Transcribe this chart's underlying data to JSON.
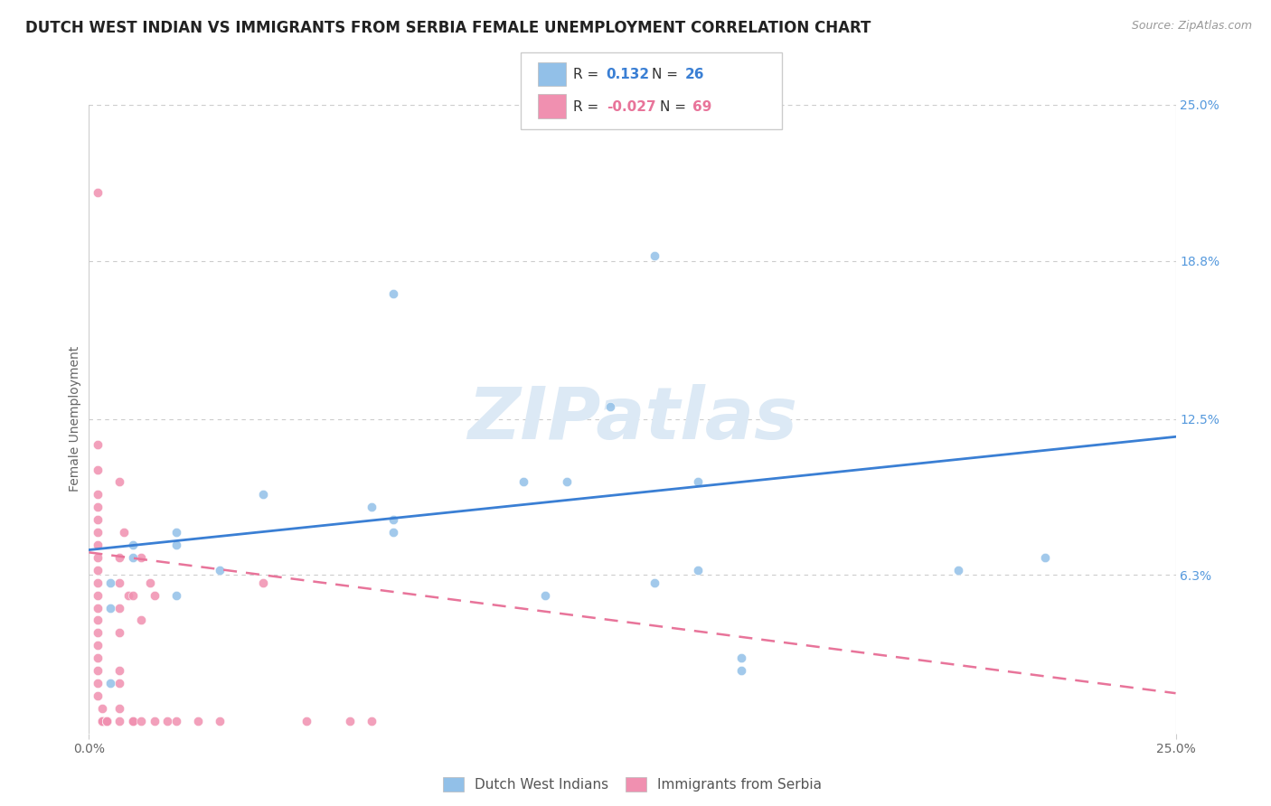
{
  "title": "DUTCH WEST INDIAN VS IMMIGRANTS FROM SERBIA FEMALE UNEMPLOYMENT CORRELATION CHART",
  "source": "Source: ZipAtlas.com",
  "ylabel": "Female Unemployment",
  "xlim": [
    0.0,
    0.25
  ],
  "ylim": [
    0.0,
    0.25
  ],
  "ytick_labels_right": [
    "25.0%",
    "18.8%",
    "12.5%",
    "6.3%"
  ],
  "ytick_values_right": [
    0.25,
    0.188,
    0.125,
    0.063
  ],
  "background_color": "#ffffff",
  "watermark_text": "ZIPatlas",
  "watermark_color": "#dce9f5",
  "blue_color": "#92c0e8",
  "pink_color": "#f090b0",
  "blue_line_color": "#3a7fd4",
  "pink_line_color": "#e8749a",
  "series1_label": "Dutch West Indians",
  "series2_label": "Immigrants from Serbia",
  "series1_R": 0.132,
  "series1_N": 26,
  "series2_R": -0.027,
  "series2_N": 69,
  "dutch_x": [
    0.005,
    0.005,
    0.005,
    0.01,
    0.01,
    0.02,
    0.02,
    0.02,
    0.03,
    0.04,
    0.065,
    0.07,
    0.07,
    0.07,
    0.1,
    0.105,
    0.11,
    0.12,
    0.13,
    0.13,
    0.14,
    0.14,
    0.15,
    0.2,
    0.22,
    0.15
  ],
  "dutch_y": [
    0.06,
    0.05,
    0.02,
    0.075,
    0.07,
    0.08,
    0.075,
    0.055,
    0.065,
    0.095,
    0.09,
    0.175,
    0.085,
    0.08,
    0.1,
    0.055,
    0.1,
    0.13,
    0.19,
    0.06,
    0.065,
    0.1,
    0.025,
    0.065,
    0.07,
    0.03
  ],
  "serbia_x": [
    0.002,
    0.002,
    0.002,
    0.002,
    0.002,
    0.002,
    0.002,
    0.002,
    0.002,
    0.002,
    0.002,
    0.002,
    0.002,
    0.002,
    0.002,
    0.002,
    0.002,
    0.002,
    0.002,
    0.002,
    0.003,
    0.003,
    0.003,
    0.003,
    0.003,
    0.003,
    0.003,
    0.003,
    0.003,
    0.003,
    0.003,
    0.003,
    0.003,
    0.003,
    0.003,
    0.004,
    0.004,
    0.004,
    0.004,
    0.004,
    0.004,
    0.007,
    0.007,
    0.007,
    0.007,
    0.007,
    0.007,
    0.007,
    0.007,
    0.007,
    0.008,
    0.009,
    0.01,
    0.01,
    0.01,
    0.012,
    0.012,
    0.012,
    0.014,
    0.015,
    0.015,
    0.018,
    0.02,
    0.025,
    0.03,
    0.04,
    0.05,
    0.06,
    0.065
  ],
  "serbia_y": [
    0.215,
    0.115,
    0.105,
    0.095,
    0.09,
    0.085,
    0.08,
    0.075,
    0.07,
    0.065,
    0.06,
    0.055,
    0.05,
    0.045,
    0.04,
    0.035,
    0.03,
    0.025,
    0.02,
    0.015,
    0.01,
    0.005,
    0.005,
    0.005,
    0.005,
    0.005,
    0.005,
    0.005,
    0.005,
    0.005,
    0.005,
    0.005,
    0.005,
    0.005,
    0.005,
    0.005,
    0.005,
    0.005,
    0.005,
    0.005,
    0.005,
    0.1,
    0.07,
    0.06,
    0.05,
    0.04,
    0.025,
    0.02,
    0.01,
    0.005,
    0.08,
    0.055,
    0.005,
    0.005,
    0.055,
    0.07,
    0.045,
    0.005,
    0.06,
    0.005,
    0.055,
    0.005,
    0.005,
    0.005,
    0.005,
    0.06,
    0.005,
    0.005,
    0.005
  ],
  "dutch_line_x0": 0.0,
  "dutch_line_x1": 0.25,
  "dutch_line_y0": 0.073,
  "dutch_line_y1": 0.118,
  "serbia_line_x0": 0.0,
  "serbia_line_x1": 0.25,
  "serbia_line_y0": 0.072,
  "serbia_line_y1": 0.016,
  "title_fontsize": 12,
  "label_fontsize": 10,
  "tick_fontsize": 10,
  "marker_size": 55
}
